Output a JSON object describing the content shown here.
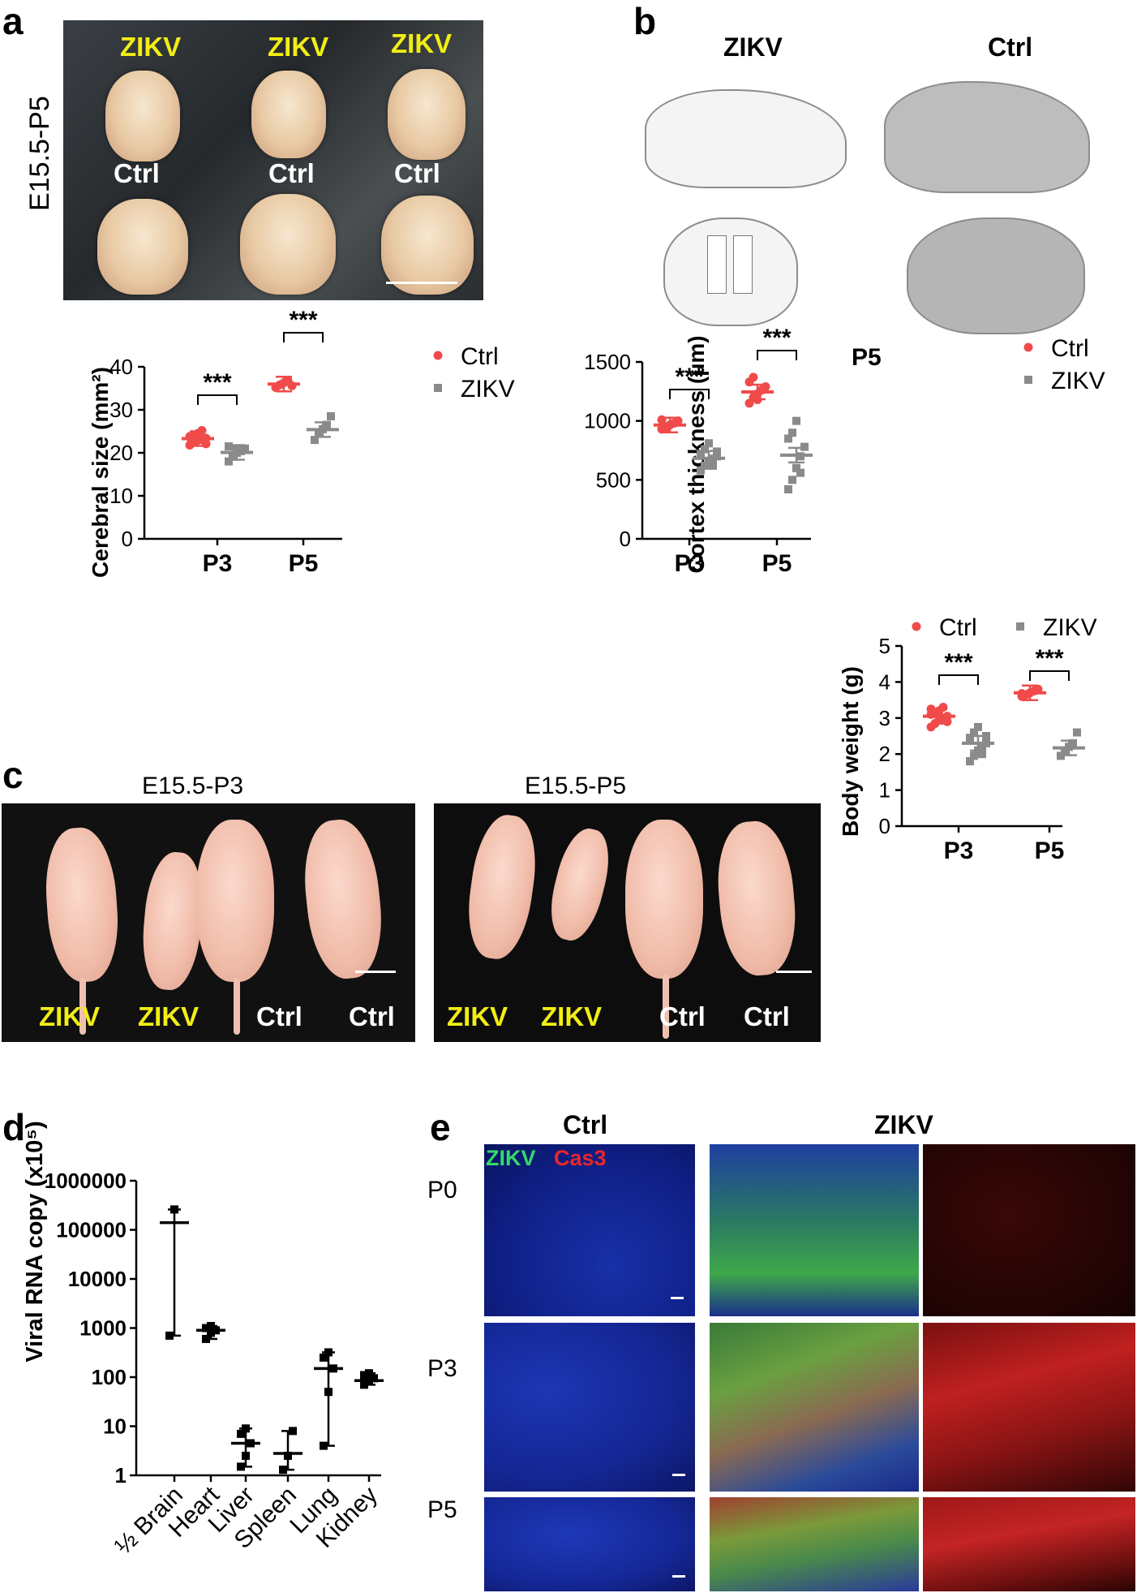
{
  "panels": {
    "a": {
      "letter": "a",
      "side_label": "E15.5-P5",
      "top_labels": [
        "ZIKV",
        "ZIKV",
        "ZIKV"
      ],
      "bottom_labels": [
        "Ctrl",
        "Ctrl",
        "Ctrl"
      ]
    },
    "b": {
      "letter": "b",
      "col_labels": [
        "ZIKV",
        "Ctrl"
      ],
      "age_label": "P5"
    },
    "c": {
      "letter": "c",
      "title_left": "E15.5-P3",
      "title_right": "E15.5-P5",
      "pup_labels_left": [
        "ZIKV",
        "ZIKV",
        "Ctrl",
        "Ctrl"
      ],
      "pup_labels_right": [
        "ZIKV",
        "ZIKV",
        "Ctrl",
        "Ctrl"
      ]
    },
    "d": {
      "letter": "d"
    },
    "e": {
      "letter": "e",
      "header_ctrl": "Ctrl",
      "header_zikv": "ZIKV",
      "stain_green": "ZIKV",
      "stain_red": "Cas3",
      "rows": [
        "P0",
        "P3",
        "P5"
      ]
    }
  },
  "colors": {
    "ctrl": "#f04a4a",
    "zikv": "#8a8a8a",
    "yellow_label": "#f2ee14",
    "red_stain": "#e8262b",
    "green_stain": "#34d96a"
  },
  "chart_data": [
    {
      "id": "cerebral",
      "type": "scatter",
      "ylabel": "Cerebral  size (mm²)",
      "ylim": [
        0,
        40
      ],
      "yticks": [
        "0",
        "10",
        "20",
        "30",
        "40"
      ],
      "categories": [
        "P3",
        "P5"
      ],
      "legend": [
        "Ctrl",
        "ZIKV"
      ],
      "significance": [
        "***",
        "***"
      ],
      "series": [
        {
          "name": "Ctrl",
          "marker": "circle",
          "mean": [
            23.3,
            36.0
          ],
          "points": [
            [
              21.8,
              22.4,
              22.9,
              23.1,
              23.4,
              23.6,
              24.0,
              24.5,
              25.2,
              22.1,
              23.8
            ],
            [
              35.2,
              35.8,
              36.3,
              36.8,
              35.6
            ]
          ]
        },
        {
          "name": "ZIKV",
          "marker": "square",
          "mean": [
            20.1,
            25.4
          ],
          "points": [
            [
              18.0,
              19.4,
              20.0,
              20.4,
              21.0,
              21.5,
              19.1,
              20.8
            ],
            [
              23.0,
              24.5,
              25.5,
              26.5,
              28.5
            ]
          ]
        }
      ]
    },
    {
      "id": "cortex",
      "type": "scatter",
      "ylabel": "Cortex thickness (µm)",
      "ylim": [
        0,
        1500
      ],
      "yticks": [
        "0",
        "500",
        "1000",
        "1500"
      ],
      "categories": [
        "P3",
        "P5"
      ],
      "legend": [
        "Ctrl",
        "ZIKV"
      ],
      "significance": [
        "***",
        "***"
      ],
      "series": [
        {
          "name": "Ctrl",
          "marker": "circle",
          "mean": [
            965,
            1245
          ],
          "points": [
            [
              930,
              950,
              965,
              980,
              1000,
              1010,
              940
            ],
            [
              1150,
              1200,
              1230,
              1260,
              1290,
              1330,
              1370,
              1180
            ]
          ]
        },
        {
          "name": "ZIKV",
          "marker": "square",
          "mean": [
            683,
            710
          ],
          "points": [
            [
              580,
              620,
              650,
              680,
              700,
              720,
              760,
              810,
              620,
              740
            ],
            [
              420,
              500,
              600,
              700,
              780,
              850,
              900,
              1000,
              560
            ]
          ]
        }
      ]
    },
    {
      "id": "bodyweight",
      "type": "scatter",
      "ylabel": "Body weight (g)",
      "ylim": [
        0,
        5
      ],
      "yticks": [
        "0",
        "1",
        "2",
        "3",
        "4",
        "5"
      ],
      "categories": [
        "P3",
        "P5"
      ],
      "legend": [
        "Ctrl",
        "ZIKV"
      ],
      "significance": [
        "***",
        "***"
      ],
      "series": [
        {
          "name": "Ctrl",
          "marker": "circle",
          "mean": [
            3.05,
            3.7
          ],
          "points": [
            [
              2.75,
              2.85,
              2.95,
              3.0,
              3.05,
              3.1,
              3.15,
              3.2,
              3.3,
              2.9,
              3.25
            ],
            [
              3.6,
              3.65,
              3.7,
              3.75,
              3.8,
              3.68
            ]
          ]
        },
        {
          "name": "ZIKV",
          "marker": "square",
          "mean": [
            2.3,
            2.17
          ],
          "points": [
            [
              1.8,
              1.95,
              2.1,
              2.2,
              2.3,
              2.45,
              2.6,
              2.75,
              2.0,
              2.5
            ],
            [
              1.95,
              2.1,
              2.2,
              2.3,
              2.6
            ]
          ]
        }
      ]
    },
    {
      "id": "viral",
      "type": "scatter",
      "ylabel": "Viral RNA copy (x10⁵)",
      "yscale": "log",
      "ylim": [
        1,
        1000000
      ],
      "yticks": [
        "1",
        "10",
        "100",
        "1000",
        "10000",
        "100000",
        "1000000"
      ],
      "categories": [
        "½ Brain",
        "Heart",
        "Liver",
        "Spleen",
        "Lung",
        "Kidney"
      ],
      "series": [
        {
          "name": "",
          "marker": "square",
          "mean": [
            140000,
            900,
            4.5,
            2.8,
            150,
            85
          ],
          "points": [
            [
              700,
              260000
            ],
            [
              600,
              800,
              900,
              1000,
              1100
            ],
            [
              1.5,
              2.5,
              4.5,
              7,
              9
            ],
            [
              1.3,
              2.5,
              8
            ],
            [
              4,
              50,
              150,
              250,
              320
            ],
            [
              70,
              85,
              95,
              110,
              120
            ]
          ]
        }
      ]
    }
  ]
}
